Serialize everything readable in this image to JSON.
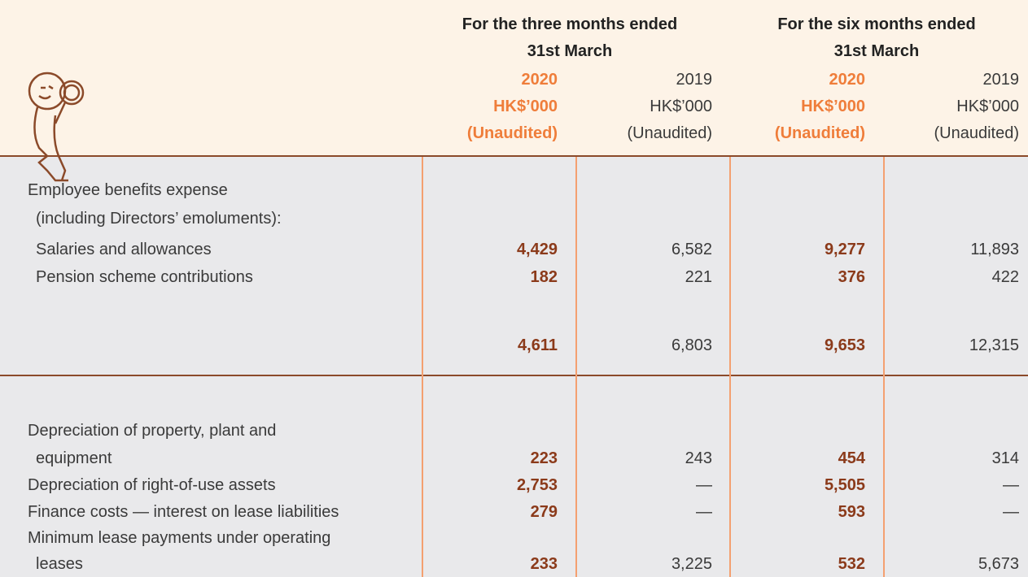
{
  "header": {
    "groups": [
      {
        "lines": [
          "For the three months ended",
          "31st March"
        ]
      },
      {
        "lines": [
          "For the six months ended",
          "31st March"
        ]
      }
    ],
    "columns": [
      {
        "year": "2020",
        "unit": "HK$’000",
        "status": "(Unaudited)"
      },
      {
        "year": "2019",
        "unit": "HK$’000",
        "status": "(Unaudited)"
      },
      {
        "year": "2020",
        "unit": "HK$’000",
        "status": "(Unaudited)"
      },
      {
        "year": "2019",
        "unit": "HK$’000",
        "status": "(Unaudited)"
      }
    ]
  },
  "table": {
    "rows": [
      {
        "label": "Employee benefits expense"
      },
      {
        "label": "(including Directors’ emoluments):"
      },
      {
        "label": "Salaries and allowances",
        "values": [
          "4,429",
          "6,582",
          "9,277",
          "11,893"
        ]
      },
      {
        "label": "Pension scheme contributions",
        "values": [
          "182",
          "221",
          "376",
          "422"
        ]
      },
      {
        "values": [
          "4,611",
          "6,803",
          "9,653",
          "12,315"
        ]
      },
      {
        "label": "Depreciation of property, plant and"
      },
      {
        "label": "equipment",
        "values": [
          "223",
          "243",
          "454",
          "314"
        ]
      },
      {
        "label": "Depreciation of right-of-use assets",
        "values": [
          "2,753",
          "—",
          "5,505",
          "—"
        ]
      },
      {
        "label": "Finance costs — interest on lease liabilities",
        "values": [
          "279",
          "—",
          "593",
          "—"
        ]
      },
      {
        "label": "Minimum lease payments under operating"
      },
      {
        "label": "leases",
        "values": [
          "233",
          "3,225",
          "532",
          "5,673"
        ]
      }
    ]
  }
}
